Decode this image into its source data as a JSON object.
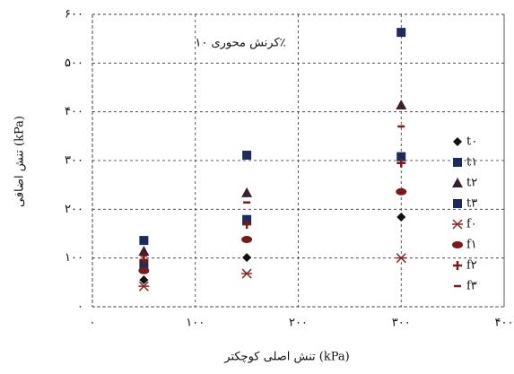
{
  "chart_data": {
    "type": "scatter",
    "annotation": "کرنش محوری ۱۰٪",
    "x_label": "تنش اصلی کوچکتر (kPa)",
    "y_label": "تنش اضافی (kPa)",
    "x": [
      50,
      150,
      300
    ],
    "xlim": [
      0,
      400
    ],
    "xticks": [
      {
        "value": 0,
        "label": "۰"
      },
      {
        "value": 100,
        "label": "۱۰۰"
      },
      {
        "value": 200,
        "label": "۲۰۰"
      },
      {
        "value": 300,
        "label": "۳۰۰"
      },
      {
        "value": 400,
        "label": "۴۰۰"
      }
    ],
    "ylim": [
      0,
      600
    ],
    "yticks": [
      {
        "value": 0,
        "label": "۰"
      },
      {
        "value": 100,
        "label": "۱۰۰"
      },
      {
        "value": 200,
        "label": "۲۰۰"
      },
      {
        "value": 300,
        "label": "۳۰۰"
      },
      {
        "value": 400,
        "label": "۴۰۰"
      },
      {
        "value": 500,
        "label": "۵۰۰"
      },
      {
        "value": 600,
        "label": "۶۰۰"
      }
    ],
    "grid": true,
    "legend": "right",
    "series": [
      {
        "name": "t۰",
        "color": "#111111",
        "marker": "diamond",
        "values": [
          55,
          101,
          184
        ]
      },
      {
        "name": "t۱",
        "color": "#1f2a5c",
        "marker": "square",
        "values": [
          87,
          311,
          563
        ]
      },
      {
        "name": "t۲",
        "color": "#3a2030",
        "marker": "triangle",
        "values": [
          114,
          234,
          414
        ]
      },
      {
        "name": "t۳",
        "color": "#1f2a5c",
        "marker": "square",
        "values": [
          136,
          179,
          308
        ]
      },
      {
        "name": "f۰",
        "color": "#8b2a2a",
        "marker": "asterisk",
        "values": [
          42,
          68,
          100
        ]
      },
      {
        "name": "f۱",
        "color": "#7a1a1a",
        "marker": "circle",
        "values": [
          74,
          138,
          236
        ]
      },
      {
        "name": "f۲",
        "color": "#7a1a1a",
        "marker": "plus",
        "values": [
          96,
          169,
          295
        ]
      },
      {
        "name": "f۳",
        "color": "#7a1a1a",
        "marker": "dash",
        "values": [
          105,
          214,
          370
        ]
      }
    ]
  }
}
